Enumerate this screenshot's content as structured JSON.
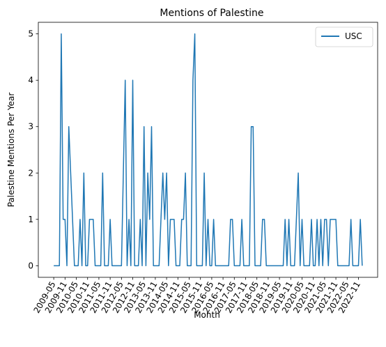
{
  "chart_data": {
    "type": "line",
    "title": "Mentions of Palestine",
    "xlabel": "Month",
    "ylabel": "Palestine Mentions Per Year",
    "ylim": [
      -0.25,
      5.25
    ],
    "y_ticks": [
      0,
      1,
      2,
      3,
      4,
      5
    ],
    "x_tick_labels": [
      "2009-05",
      "2009-11",
      "2010-05",
      "2010-11",
      "2011-05",
      "2011-11",
      "2012-05",
      "2012-11",
      "2013-05",
      "2013-11",
      "2014-05",
      "2014-11",
      "2015-05",
      "2015-11",
      "2016-05",
      "2016-11",
      "2017-05",
      "2017-11",
      "2018-05",
      "2018-11",
      "2019-05",
      "2019-11",
      "2020-05",
      "2020-11",
      "2021-05",
      "2021-11",
      "2022-05",
      "2022-11"
    ],
    "legend": {
      "position": "top-right"
    },
    "line_color": "#1f77b4",
    "series": [
      {
        "name": "USC",
        "points": [
          [
            "2009-05",
            0
          ],
          [
            "2009-06",
            0
          ],
          [
            "2009-07",
            0
          ],
          [
            "2009-08",
            0
          ],
          [
            "2009-09",
            5
          ],
          [
            "2009-10",
            1
          ],
          [
            "2009-11",
            1
          ],
          [
            "2009-12",
            0
          ],
          [
            "2010-01",
            3
          ],
          [
            "2010-02",
            2
          ],
          [
            "2010-03",
            1
          ],
          [
            "2010-04",
            0
          ],
          [
            "2010-05",
            0
          ],
          [
            "2010-06",
            0
          ],
          [
            "2010-07",
            1
          ],
          [
            "2010-08",
            0
          ],
          [
            "2010-09",
            2
          ],
          [
            "2010-10",
            0
          ],
          [
            "2010-11",
            0
          ],
          [
            "2010-12",
            1
          ],
          [
            "2011-01",
            1
          ],
          [
            "2011-02",
            1
          ],
          [
            "2011-03",
            0
          ],
          [
            "2011-04",
            0
          ],
          [
            "2011-05",
            0
          ],
          [
            "2011-06",
            0
          ],
          [
            "2011-07",
            2
          ],
          [
            "2011-08",
            0
          ],
          [
            "2011-09",
            0
          ],
          [
            "2011-10",
            0
          ],
          [
            "2011-11",
            1
          ],
          [
            "2011-12",
            0
          ],
          [
            "2012-01",
            0
          ],
          [
            "2012-02",
            0
          ],
          [
            "2012-03",
            0
          ],
          [
            "2012-04",
            0
          ],
          [
            "2012-05",
            0
          ],
          [
            "2012-06",
            2
          ],
          [
            "2012-07",
            4
          ],
          [
            "2012-08",
            0
          ],
          [
            "2012-09",
            1
          ],
          [
            "2012-10",
            0
          ],
          [
            "2012-11",
            4
          ],
          [
            "2012-12",
            0
          ],
          [
            "2013-01",
            0
          ],
          [
            "2013-02",
            0
          ],
          [
            "2013-03",
            1
          ],
          [
            "2013-04",
            0
          ],
          [
            "2013-05",
            3
          ],
          [
            "2013-06",
            0
          ],
          [
            "2013-07",
            2
          ],
          [
            "2013-08",
            1
          ],
          [
            "2013-09",
            3
          ],
          [
            "2013-10",
            0
          ],
          [
            "2013-11",
            0
          ],
          [
            "2013-12",
            0
          ],
          [
            "2014-01",
            0
          ],
          [
            "2014-02",
            1
          ],
          [
            "2014-03",
            2
          ],
          [
            "2014-04",
            1
          ],
          [
            "2014-05",
            2
          ],
          [
            "2014-06",
            0
          ],
          [
            "2014-07",
            1
          ],
          [
            "2014-08",
            1
          ],
          [
            "2014-09",
            1
          ],
          [
            "2014-10",
            0
          ],
          [
            "2014-11",
            0
          ],
          [
            "2014-12",
            0
          ],
          [
            "2015-01",
            1
          ],
          [
            "2015-02",
            1
          ],
          [
            "2015-03",
            2
          ],
          [
            "2015-04",
            0
          ],
          [
            "2015-05",
            0
          ],
          [
            "2015-06",
            0
          ],
          [
            "2015-07",
            4
          ],
          [
            "2015-08",
            5
          ],
          [
            "2015-09",
            0
          ],
          [
            "2015-10",
            0
          ],
          [
            "2015-11",
            0
          ],
          [
            "2015-12",
            0
          ],
          [
            "2016-01",
            2
          ],
          [
            "2016-02",
            0
          ],
          [
            "2016-03",
            1
          ],
          [
            "2016-04",
            0
          ],
          [
            "2016-05",
            0
          ],
          [
            "2016-06",
            1
          ],
          [
            "2016-07",
            0
          ],
          [
            "2016-08",
            0
          ],
          [
            "2016-09",
            0
          ],
          [
            "2016-10",
            0
          ],
          [
            "2016-11",
            0
          ],
          [
            "2016-12",
            0
          ],
          [
            "2017-01",
            0
          ],
          [
            "2017-02",
            0
          ],
          [
            "2017-03",
            1
          ],
          [
            "2017-04",
            1
          ],
          [
            "2017-05",
            0
          ],
          [
            "2017-06",
            0
          ],
          [
            "2017-07",
            0
          ],
          [
            "2017-08",
            0
          ],
          [
            "2017-09",
            1
          ],
          [
            "2017-10",
            0
          ],
          [
            "2017-11",
            0
          ],
          [
            "2017-12",
            0
          ],
          [
            "2018-01",
            0
          ],
          [
            "2018-02",
            3
          ],
          [
            "2018-03",
            3
          ],
          [
            "2018-04",
            0
          ],
          [
            "2018-05",
            0
          ],
          [
            "2018-06",
            0
          ],
          [
            "2018-07",
            0
          ],
          [
            "2018-08",
            1
          ],
          [
            "2018-09",
            1
          ],
          [
            "2018-10",
            0
          ],
          [
            "2018-11",
            0
          ],
          [
            "2018-12",
            0
          ],
          [
            "2019-01",
            0
          ],
          [
            "2019-02",
            0
          ],
          [
            "2019-03",
            0
          ],
          [
            "2019-04",
            0
          ],
          [
            "2019-05",
            0
          ],
          [
            "2019-06",
            0
          ],
          [
            "2019-07",
            0
          ],
          [
            "2019-08",
            1
          ],
          [
            "2019-09",
            0
          ],
          [
            "2019-10",
            1
          ],
          [
            "2019-11",
            0
          ],
          [
            "2019-12",
            0
          ],
          [
            "2020-01",
            0
          ],
          [
            "2020-02",
            1
          ],
          [
            "2020-03",
            2
          ],
          [
            "2020-04",
            0
          ],
          [
            "2020-05",
            1
          ],
          [
            "2020-06",
            0
          ],
          [
            "2020-07",
            0
          ],
          [
            "2020-08",
            0
          ],
          [
            "2020-09",
            0
          ],
          [
            "2020-10",
            1
          ],
          [
            "2020-11",
            0
          ],
          [
            "2020-12",
            0
          ],
          [
            "2021-01",
            1
          ],
          [
            "2021-02",
            0
          ],
          [
            "2021-03",
            1
          ],
          [
            "2021-04",
            0
          ],
          [
            "2021-05",
            1
          ],
          [
            "2021-06",
            1
          ],
          [
            "2021-07",
            0
          ],
          [
            "2021-08",
            1
          ],
          [
            "2021-09",
            1
          ],
          [
            "2021-10",
            1
          ],
          [
            "2021-11",
            1
          ],
          [
            "2021-12",
            0
          ],
          [
            "2022-01",
            0
          ],
          [
            "2022-02",
            0
          ],
          [
            "2022-03",
            0
          ],
          [
            "2022-04",
            0
          ],
          [
            "2022-05",
            0
          ],
          [
            "2022-06",
            0
          ],
          [
            "2022-07",
            1
          ],
          [
            "2022-08",
            0
          ],
          [
            "2022-09",
            0
          ],
          [
            "2022-10",
            0
          ],
          [
            "2022-11",
            0
          ],
          [
            "2022-12",
            1
          ],
          [
            "2023-01",
            0
          ]
        ]
      }
    ]
  }
}
